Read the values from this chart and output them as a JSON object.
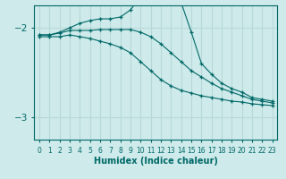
{
  "xlabel": "Humidex (Indice chaleur)",
  "bg_color": "#ceeaea",
  "line_color": "#006868",
  "grid_color": "#b8d8d8",
  "x_values": [
    0,
    1,
    2,
    3,
    4,
    5,
    6,
    7,
    8,
    9,
    10,
    11,
    12,
    13,
    14,
    15,
    16,
    17,
    18,
    19,
    20,
    21,
    22,
    23
  ],
  "line_max": [
    -2.08,
    -2.08,
    -2.05,
    -2.0,
    -1.95,
    -1.92,
    -1.9,
    -1.9,
    -1.88,
    -1.8,
    -1.65,
    -1.42,
    -1.1,
    -1.42,
    -1.72,
    -2.05,
    -2.4,
    -2.52,
    -2.62,
    -2.68,
    -2.72,
    -2.78,
    -2.8,
    -2.82
  ],
  "line_mean": [
    -2.08,
    -2.08,
    -2.06,
    -2.03,
    -2.03,
    -2.03,
    -2.02,
    -2.02,
    -2.02,
    -2.02,
    -2.05,
    -2.1,
    -2.18,
    -2.28,
    -2.38,
    -2.48,
    -2.55,
    -2.62,
    -2.68,
    -2.72,
    -2.76,
    -2.8,
    -2.82,
    -2.84
  ],
  "line_min": [
    -2.1,
    -2.1,
    -2.1,
    -2.08,
    -2.1,
    -2.12,
    -2.15,
    -2.18,
    -2.22,
    -2.28,
    -2.38,
    -2.48,
    -2.58,
    -2.65,
    -2.7,
    -2.73,
    -2.76,
    -2.78,
    -2.8,
    -2.82,
    -2.83,
    -2.85,
    -2.86,
    -2.87
  ],
  "ylim": [
    -3.25,
    -1.75
  ],
  "yticks": [
    -3.0,
    -2.0
  ],
  "xlim": [
    -0.5,
    23.5
  ],
  "xtick_fontsize": 5.5,
  "ytick_fontsize": 7.5
}
